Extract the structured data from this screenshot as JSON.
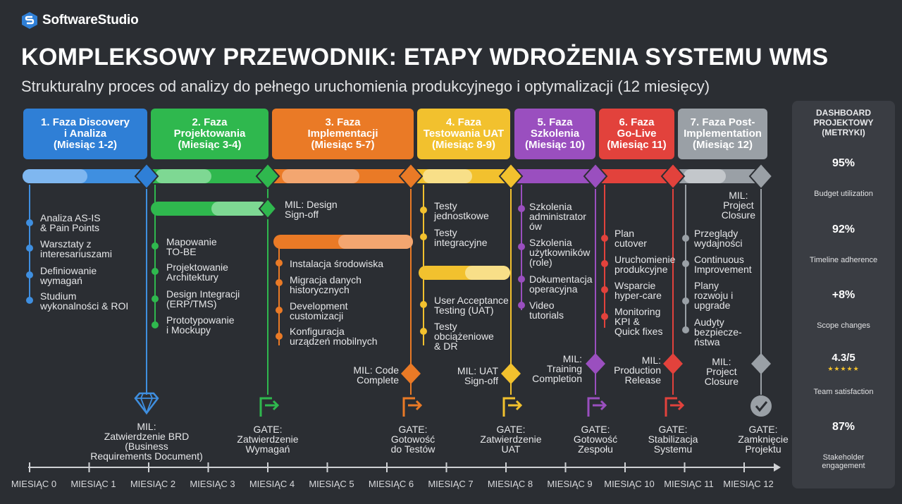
{
  "brand": {
    "name": "SoftwareStudio"
  },
  "title": "KOMPLEKSOWY PRZEWODNIK: ETAPY WDROŻENIA SYSTEMU WMS",
  "subtitle": "Strukturalny proces od analizy do pełnego uruchomienia produkcyjnego i optymalizacji (12 miesięcy)",
  "phases": [
    {
      "label": "1. Faza Discovery\ni Analiza\n(Miesiąc 1-2)",
      "color": "#2f7fd6"
    },
    {
      "label": "2. Faza\nProjektowania\n(Miesiąc 3-4)",
      "color": "#2fb84e"
    },
    {
      "label": "3. Faza\nImplementacji\n(Miesiąc 5-7)",
      "color": "#ea7a26"
    },
    {
      "label": "4. Faza\nTestowania UAT\n(Miesiąc 8-9)",
      "color": "#f2c12e"
    },
    {
      "label": "5. Faza\nSzkolenia\n(Miesiąc 10)",
      "color": "#9a4fbf"
    },
    {
      "label": "6. Faza\nGo-Live\n(Miesiąc 11)",
      "color": "#e2423c"
    },
    {
      "label": "7. Faza Post-\nImplementation\n(Miesiąc 12)",
      "color": "#9aa0a6"
    }
  ],
  "tasks": {
    "discovery": [
      "Analiza AS-IS\n& Pain Points",
      "Warsztaty z\ninteresariuszami",
      "Definiowanie\nwymagań",
      "Studium\nwykonalności & ROI"
    ],
    "design": [
      "Mapowanie\nTO-BE",
      "Projektowanie\nArchitektury",
      "Design Integracji\n(ERP/TMS)",
      "Prototypowanie\ni Mockupy"
    ],
    "implementation": [
      "Instalacja środowiska",
      "Migracja danych\nhistorycznych",
      "Development\ncustomizacji",
      "Konfiguracja\nurządzeń mobilnych"
    ],
    "testing": [
      "Testy\njednostkowe",
      "Testy\nintegracyjne",
      "User Acceptance\nTesting (UAT)",
      "Testy\nobciążeniowe\n& DR"
    ],
    "training": [
      "Szkolenia\nadministrator\nów",
      "Szkolenia\nużytkowników\n(role)",
      "Dokumentacja\noperacyjna",
      "Video\ntutorials"
    ],
    "golive": [
      "Plan\ncutover",
      "Uruchomienie\nprodukcyjne",
      "Wsparcie\nhyper-care",
      "Monitoring\nKPI &\nQuick fixes"
    ],
    "post": [
      "Przeglądy\nwydajności",
      "Continuous\nImprovement",
      "Plany\nrozwoju i\nupgrade",
      "Audyty\nbezpiecze-\nństwa"
    ]
  },
  "milestones": {
    "design_signoff": "MIL: Design\nSign-off",
    "project_closure_top": "MIL:\nProject\nClosure",
    "code_complete": "MIL: Code\nComplete",
    "uat_signoff": "MIL: UAT\nSign-off",
    "training_completion": "MIL:\nTraining\nCompletion",
    "production_release": "MIL:\nProduction\nRelease",
    "project_closure": "MIL:\nProject\nClosure"
  },
  "gates": [
    "MIL:\nZatwierdzenie BRD\n(Business\nRequirements Document)",
    "GATE:\nZatwierdzenie\nWymagań",
    "GATE:\nGotowość\ndo Testów",
    "GATE:\nZatwierdzenie\nUAT",
    "GATE:\nGotowość\nZespołu",
    "GATE:\nStabilizacja\nSystemu",
    "GATE:\nZamknięcie\nProjektu"
  ],
  "months": [
    "MIESIĄC 0",
    "MIESIĄC 1",
    "MIESIĄC 2",
    "MIESIĄC 3",
    "MIESIĄC 4",
    "MIESIĄC 5",
    "MIESIĄC 6",
    "MIESIĄC 7",
    "MIESIĄC 8",
    "MIESIĄC 9",
    "MIESIĄC 10",
    "MIESIĄC 11",
    "MIESIĄC 12"
  ],
  "dashboard": {
    "title": "DASHBOARD\nPROJEKTOWY\n(METRYKI)",
    "metrics": [
      {
        "value": "95%",
        "label": "Budget utilization",
        "color": "#39c35a"
      },
      {
        "value": "92%",
        "label": "Timeline adherence",
        "color": "#39c35a"
      },
      {
        "value": "+8%",
        "label": "Scope changes",
        "color": "#ea7a26"
      },
      {
        "value": "4.3/5",
        "label": "Team satisfaction",
        "color": "#f2c12e",
        "stars": "★★★★★"
      },
      {
        "value": "87%",
        "label": "Stakeholder\nengagement",
        "color": "#2f7fd6"
      }
    ]
  }
}
